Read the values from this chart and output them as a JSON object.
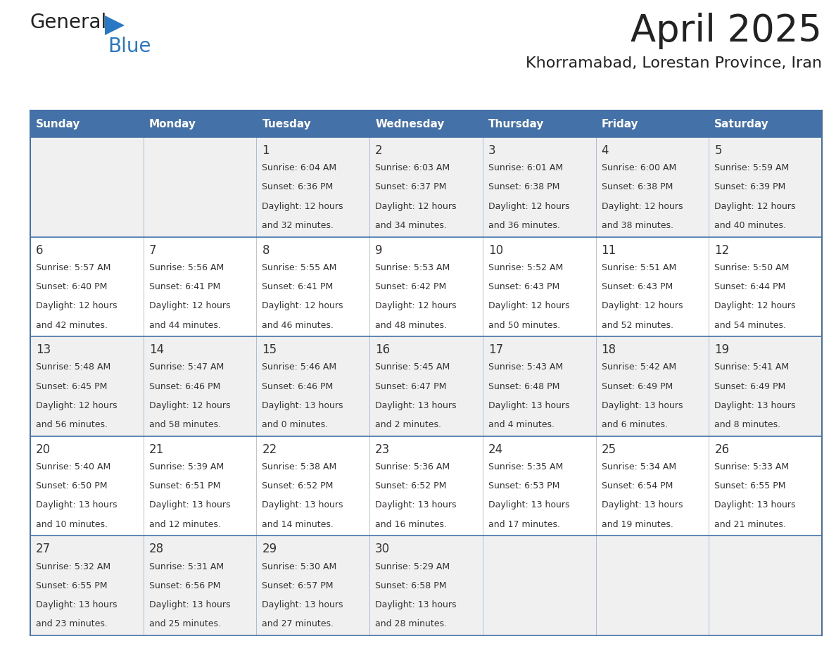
{
  "title": "April 2025",
  "subtitle": "Khorramabad, Lorestan Province, Iran",
  "days_of_week": [
    "Sunday",
    "Monday",
    "Tuesday",
    "Wednesday",
    "Thursday",
    "Friday",
    "Saturday"
  ],
  "header_bg": "#4472a8",
  "header_text": "#ffffff",
  "cell_bg_odd": "#f0f0f0",
  "cell_bg_even": "#ffffff",
  "cell_border_color": "#4472a8",
  "row_border_color": "#4472a8",
  "text_color": "#333333",
  "title_color": "#222222",
  "logo_general_color": "#222222",
  "logo_blue_color": "#2878c3",
  "figsize": [
    11.88,
    9.18
  ],
  "dpi": 100,
  "weeks": [
    [
      {
        "day": null,
        "sunrise": null,
        "sunset": null,
        "daylight_line1": null,
        "daylight_line2": null
      },
      {
        "day": null,
        "sunrise": null,
        "sunset": null,
        "daylight_line1": null,
        "daylight_line2": null
      },
      {
        "day": "1",
        "sunrise": "Sunrise: 6:04 AM",
        "sunset": "Sunset: 6:36 PM",
        "daylight_line1": "Daylight: 12 hours",
        "daylight_line2": "and 32 minutes."
      },
      {
        "day": "2",
        "sunrise": "Sunrise: 6:03 AM",
        "sunset": "Sunset: 6:37 PM",
        "daylight_line1": "Daylight: 12 hours",
        "daylight_line2": "and 34 minutes."
      },
      {
        "day": "3",
        "sunrise": "Sunrise: 6:01 AM",
        "sunset": "Sunset: 6:38 PM",
        "daylight_line1": "Daylight: 12 hours",
        "daylight_line2": "and 36 minutes."
      },
      {
        "day": "4",
        "sunrise": "Sunrise: 6:00 AM",
        "sunset": "Sunset: 6:38 PM",
        "daylight_line1": "Daylight: 12 hours",
        "daylight_line2": "and 38 minutes."
      },
      {
        "day": "5",
        "sunrise": "Sunrise: 5:59 AM",
        "sunset": "Sunset: 6:39 PM",
        "daylight_line1": "Daylight: 12 hours",
        "daylight_line2": "and 40 minutes."
      }
    ],
    [
      {
        "day": "6",
        "sunrise": "Sunrise: 5:57 AM",
        "sunset": "Sunset: 6:40 PM",
        "daylight_line1": "Daylight: 12 hours",
        "daylight_line2": "and 42 minutes."
      },
      {
        "day": "7",
        "sunrise": "Sunrise: 5:56 AM",
        "sunset": "Sunset: 6:41 PM",
        "daylight_line1": "Daylight: 12 hours",
        "daylight_line2": "and 44 minutes."
      },
      {
        "day": "8",
        "sunrise": "Sunrise: 5:55 AM",
        "sunset": "Sunset: 6:41 PM",
        "daylight_line1": "Daylight: 12 hours",
        "daylight_line2": "and 46 minutes."
      },
      {
        "day": "9",
        "sunrise": "Sunrise: 5:53 AM",
        "sunset": "Sunset: 6:42 PM",
        "daylight_line1": "Daylight: 12 hours",
        "daylight_line2": "and 48 minutes."
      },
      {
        "day": "10",
        "sunrise": "Sunrise: 5:52 AM",
        "sunset": "Sunset: 6:43 PM",
        "daylight_line1": "Daylight: 12 hours",
        "daylight_line2": "and 50 minutes."
      },
      {
        "day": "11",
        "sunrise": "Sunrise: 5:51 AM",
        "sunset": "Sunset: 6:43 PM",
        "daylight_line1": "Daylight: 12 hours",
        "daylight_line2": "and 52 minutes."
      },
      {
        "day": "12",
        "sunrise": "Sunrise: 5:50 AM",
        "sunset": "Sunset: 6:44 PM",
        "daylight_line1": "Daylight: 12 hours",
        "daylight_line2": "and 54 minutes."
      }
    ],
    [
      {
        "day": "13",
        "sunrise": "Sunrise: 5:48 AM",
        "sunset": "Sunset: 6:45 PM",
        "daylight_line1": "Daylight: 12 hours",
        "daylight_line2": "and 56 minutes."
      },
      {
        "day": "14",
        "sunrise": "Sunrise: 5:47 AM",
        "sunset": "Sunset: 6:46 PM",
        "daylight_line1": "Daylight: 12 hours",
        "daylight_line2": "and 58 minutes."
      },
      {
        "day": "15",
        "sunrise": "Sunrise: 5:46 AM",
        "sunset": "Sunset: 6:46 PM",
        "daylight_line1": "Daylight: 13 hours",
        "daylight_line2": "and 0 minutes."
      },
      {
        "day": "16",
        "sunrise": "Sunrise: 5:45 AM",
        "sunset": "Sunset: 6:47 PM",
        "daylight_line1": "Daylight: 13 hours",
        "daylight_line2": "and 2 minutes."
      },
      {
        "day": "17",
        "sunrise": "Sunrise: 5:43 AM",
        "sunset": "Sunset: 6:48 PM",
        "daylight_line1": "Daylight: 13 hours",
        "daylight_line2": "and 4 minutes."
      },
      {
        "day": "18",
        "sunrise": "Sunrise: 5:42 AM",
        "sunset": "Sunset: 6:49 PM",
        "daylight_line1": "Daylight: 13 hours",
        "daylight_line2": "and 6 minutes."
      },
      {
        "day": "19",
        "sunrise": "Sunrise: 5:41 AM",
        "sunset": "Sunset: 6:49 PM",
        "daylight_line1": "Daylight: 13 hours",
        "daylight_line2": "and 8 minutes."
      }
    ],
    [
      {
        "day": "20",
        "sunrise": "Sunrise: 5:40 AM",
        "sunset": "Sunset: 6:50 PM",
        "daylight_line1": "Daylight: 13 hours",
        "daylight_line2": "and 10 minutes."
      },
      {
        "day": "21",
        "sunrise": "Sunrise: 5:39 AM",
        "sunset": "Sunset: 6:51 PM",
        "daylight_line1": "Daylight: 13 hours",
        "daylight_line2": "and 12 minutes."
      },
      {
        "day": "22",
        "sunrise": "Sunrise: 5:38 AM",
        "sunset": "Sunset: 6:52 PM",
        "daylight_line1": "Daylight: 13 hours",
        "daylight_line2": "and 14 minutes."
      },
      {
        "day": "23",
        "sunrise": "Sunrise: 5:36 AM",
        "sunset": "Sunset: 6:52 PM",
        "daylight_line1": "Daylight: 13 hours",
        "daylight_line2": "and 16 minutes."
      },
      {
        "day": "24",
        "sunrise": "Sunrise: 5:35 AM",
        "sunset": "Sunset: 6:53 PM",
        "daylight_line1": "Daylight: 13 hours",
        "daylight_line2": "and 17 minutes."
      },
      {
        "day": "25",
        "sunrise": "Sunrise: 5:34 AM",
        "sunset": "Sunset: 6:54 PM",
        "daylight_line1": "Daylight: 13 hours",
        "daylight_line2": "and 19 minutes."
      },
      {
        "day": "26",
        "sunrise": "Sunrise: 5:33 AM",
        "sunset": "Sunset: 6:55 PM",
        "daylight_line1": "Daylight: 13 hours",
        "daylight_line2": "and 21 minutes."
      }
    ],
    [
      {
        "day": "27",
        "sunrise": "Sunrise: 5:32 AM",
        "sunset": "Sunset: 6:55 PM",
        "daylight_line1": "Daylight: 13 hours",
        "daylight_line2": "and 23 minutes."
      },
      {
        "day": "28",
        "sunrise": "Sunrise: 5:31 AM",
        "sunset": "Sunset: 6:56 PM",
        "daylight_line1": "Daylight: 13 hours",
        "daylight_line2": "and 25 minutes."
      },
      {
        "day": "29",
        "sunrise": "Sunrise: 5:30 AM",
        "sunset": "Sunset: 6:57 PM",
        "daylight_line1": "Daylight: 13 hours",
        "daylight_line2": "and 27 minutes."
      },
      {
        "day": "30",
        "sunrise": "Sunrise: 5:29 AM",
        "sunset": "Sunset: 6:58 PM",
        "daylight_line1": "Daylight: 13 hours",
        "daylight_line2": "and 28 minutes."
      },
      {
        "day": null,
        "sunrise": null,
        "sunset": null,
        "daylight_line1": null,
        "daylight_line2": null
      },
      {
        "day": null,
        "sunrise": null,
        "sunset": null,
        "daylight_line1": null,
        "daylight_line2": null
      },
      {
        "day": null,
        "sunrise": null,
        "sunset": null,
        "daylight_line1": null,
        "daylight_line2": null
      }
    ]
  ]
}
